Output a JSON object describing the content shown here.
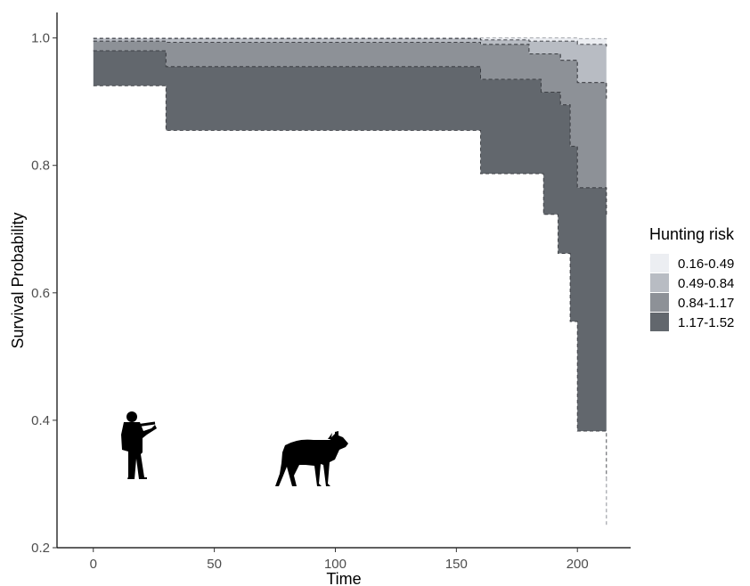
{
  "chart_data": {
    "type": "area",
    "subtype": "survival-step-bands",
    "xlabel": "Time",
    "ylabel": "Survival Probability",
    "xlim": [
      -15,
      222
    ],
    "ylim": [
      0.2,
      1.04
    ],
    "x_ticks": [
      0,
      50,
      100,
      150,
      200
    ],
    "x_tick_labels": [
      "0",
      "50",
      "100",
      "150",
      "200"
    ],
    "y_ticks": [
      0.2,
      0.4,
      0.6,
      0.8,
      1.0
    ],
    "y_tick_labels": [
      "0.2",
      "0.4",
      "0.6",
      "0.8",
      "1.0"
    ],
    "grid": false,
    "legend_position": "right",
    "legend_title": "Hunting risk",
    "band_colors": [
      "#eceef2",
      "#b8bcc3",
      "#8d9197",
      "#62676d"
    ],
    "series": [
      {
        "name": "0.16-0.49",
        "upper": [
          [
            0,
            1.0
          ],
          [
            160,
            1.0
          ],
          [
            200,
            0.999
          ],
          [
            212,
            0.998
          ]
        ],
        "lower": [
          [
            0,
            0.999
          ],
          [
            160,
            0.997
          ],
          [
            180,
            0.995
          ],
          [
            200,
            0.99
          ],
          [
            212,
            0.985
          ]
        ]
      },
      {
        "name": "0.49-0.84",
        "upper": [
          [
            0,
            0.999
          ],
          [
            160,
            0.997
          ],
          [
            180,
            0.995
          ],
          [
            200,
            0.99
          ],
          [
            212,
            0.985
          ]
        ],
        "lower": [
          [
            0,
            0.995
          ],
          [
            30,
            0.993
          ],
          [
            160,
            0.99
          ],
          [
            180,
            0.975
          ],
          [
            193,
            0.965
          ],
          [
            200,
            0.93
          ],
          [
            212,
            0.905
          ]
        ]
      },
      {
        "name": "0.84-1.17",
        "upper": [
          [
            0,
            0.995
          ],
          [
            30,
            0.993
          ],
          [
            160,
            0.99
          ],
          [
            180,
            0.975
          ],
          [
            193,
            0.965
          ],
          [
            200,
            0.93
          ],
          [
            212,
            0.905
          ]
        ],
        "lower": [
          [
            0,
            0.98
          ],
          [
            30,
            0.955
          ],
          [
            160,
            0.935
          ],
          [
            185,
            0.915
          ],
          [
            193,
            0.895
          ],
          [
            197,
            0.83
          ],
          [
            200,
            0.765
          ],
          [
            212,
            0.72
          ]
        ]
      },
      {
        "name": "1.17-1.52",
        "upper": [
          [
            0,
            0.98
          ],
          [
            30,
            0.955
          ],
          [
            160,
            0.935
          ],
          [
            185,
            0.915
          ],
          [
            193,
            0.895
          ],
          [
            197,
            0.83
          ],
          [
            200,
            0.765
          ],
          [
            212,
            0.72
          ]
        ],
        "lower": [
          [
            0,
            0.925
          ],
          [
            30,
            0.855
          ],
          [
            160,
            0.787
          ],
          [
            186,
            0.723
          ],
          [
            192,
            0.662
          ],
          [
            197,
            0.555
          ],
          [
            200,
            0.383
          ],
          [
            212,
            0.31
          ]
        ]
      }
    ],
    "tail_line": [
      [
        212,
        0.31
      ],
      [
        212,
        0.235
      ]
    ],
    "silhouettes": [
      "hunter-icon",
      "moose-icon"
    ]
  }
}
